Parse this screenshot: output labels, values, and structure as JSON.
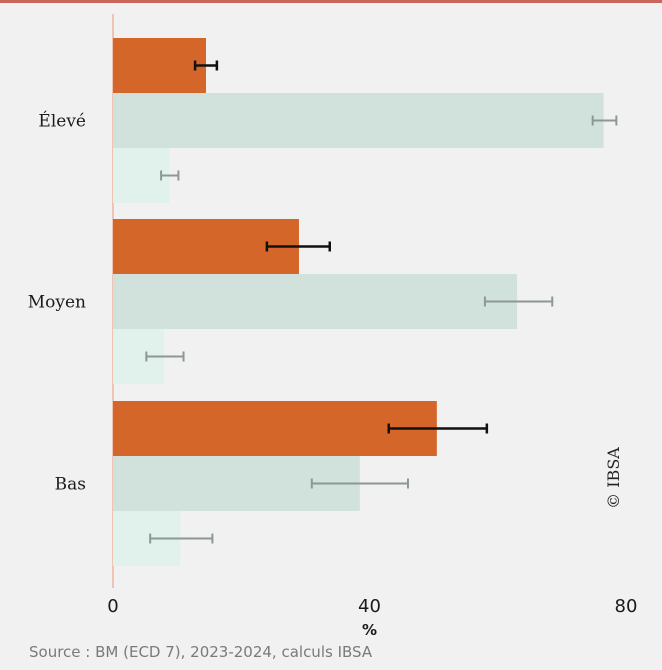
{
  "colors": {
    "accent_rule": "#c9665a",
    "axis_line": "#f0c4b4",
    "background": "#f1f1f1"
  },
  "chart_data": {
    "type": "bar",
    "orientation": "horizontal",
    "categories": [
      "Élevé",
      "Moyen",
      "Bas"
    ],
    "series": [
      {
        "color": "#d5662a",
        "errorbar_color": "#111111",
        "values": [
          14.5,
          29,
          50.5
        ],
        "error_low": [
          12.8,
          24,
          43
        ],
        "error_high": [
          16.2,
          33.8,
          58.3
        ]
      },
      {
        "color": "#d1e2dc",
        "errorbar_color": "#8d9793",
        "values": [
          76.5,
          63,
          38.5
        ],
        "error_low": [
          74.8,
          58,
          31
        ],
        "error_high": [
          78.5,
          68.5,
          46
        ]
      },
      {
        "color": "#e1f2ec",
        "errorbar_color": "#8d9793",
        "values": [
          8.8,
          8,
          10.5
        ],
        "error_low": [
          7.5,
          5.2,
          5.8
        ],
        "error_high": [
          10.2,
          11,
          15.5
        ]
      }
    ],
    "xlim": [
      0,
      80
    ],
    "xticks": [
      "0",
      "40",
      "80"
    ],
    "xlabel": "%",
    "grid": false,
    "watermark": "© IBSA",
    "source": "Source : BM (ECD 7), 2023-2024, calculs IBSA"
  }
}
